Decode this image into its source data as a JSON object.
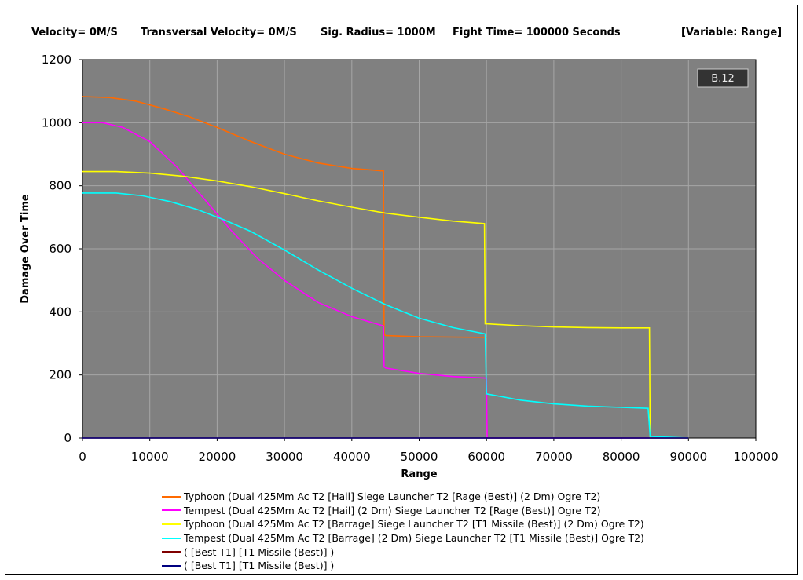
{
  "header": {
    "velocity": "Velocity= 0M/S",
    "transversal": "Transversal Velocity= 0M/S",
    "sig_radius": "Sig. Radius= 1000M",
    "fight_time": "Fight Time= 100000 Seconds",
    "variable": "[Variable: Range]"
  },
  "badge": "B.12",
  "colors": {
    "plot_background": "#808080",
    "grid": "#a6a6a6",
    "orange": "#ff6a00",
    "magenta": "#ff00ff",
    "yellow": "#ffff00",
    "cyan": "#00ffff",
    "darkred": "#800000",
    "navy": "#000080"
  },
  "chart_data": {
    "type": "line",
    "title": "",
    "xlabel": "Range",
    "ylabel": "Damage Over Time",
    "xlim": [
      0,
      100000
    ],
    "ylim": [
      0,
      1200
    ],
    "xticks": [
      "0",
      "10000",
      "20000",
      "30000",
      "40000",
      "50000",
      "60000",
      "70000",
      "80000",
      "90000",
      "100000"
    ],
    "yticks": [
      "0",
      "200",
      "400",
      "600",
      "800",
      "1000",
      "1200"
    ],
    "grid": true,
    "legend_position": "bottom",
    "series": [
      {
        "name": "Typhoon (Dual 425Mm Ac T2 [Hail] Siege Launcher T2 [Rage (Best)] (2 Dm) Ogre T2)",
        "color": "#ff6a00",
        "points": [
          [
            0,
            1083
          ],
          [
            4000,
            1080
          ],
          [
            8000,
            1068
          ],
          [
            12000,
            1045
          ],
          [
            16000,
            1018
          ],
          [
            20000,
            985
          ],
          [
            25000,
            940
          ],
          [
            30000,
            900
          ],
          [
            35000,
            872
          ],
          [
            40000,
            855
          ],
          [
            44700,
            847
          ],
          [
            44800,
            330
          ],
          [
            45000,
            325
          ],
          [
            50000,
            321
          ],
          [
            55000,
            320
          ],
          [
            60000,
            319
          ],
          [
            60000,
            319
          ]
        ]
      },
      {
        "name": "Tempest (Dual 425Mm Ac T2 [Hail] (2 Dm) Siege Launcher T2 [Rage (Best)] Ogre T2)",
        "color": "#ff00ff",
        "points": [
          [
            0,
            1000
          ],
          [
            3000,
            1000
          ],
          [
            6000,
            985
          ],
          [
            10000,
            940
          ],
          [
            14000,
            860
          ],
          [
            18000,
            760
          ],
          [
            22000,
            660
          ],
          [
            26000,
            570
          ],
          [
            30000,
            500
          ],
          [
            35000,
            430
          ],
          [
            40000,
            385
          ],
          [
            44700,
            355
          ],
          [
            44800,
            225
          ],
          [
            45000,
            222
          ],
          [
            50000,
            205
          ],
          [
            55000,
            195
          ],
          [
            60000,
            190
          ],
          [
            60100,
            0
          ],
          [
            62000,
            0
          ],
          [
            90000,
            0
          ]
        ]
      },
      {
        "name": "Typhoon (Dual 425Mm Ac T2 [Barrage] Siege Launcher T2 [T1 Missile (Best)] (2 Dm) Ogre T2)",
        "color": "#ffff00",
        "points": [
          [
            0,
            845
          ],
          [
            5000,
            845
          ],
          [
            10000,
            840
          ],
          [
            15000,
            830
          ],
          [
            20000,
            815
          ],
          [
            25000,
            797
          ],
          [
            30000,
            775
          ],
          [
            35000,
            752
          ],
          [
            40000,
            732
          ],
          [
            45000,
            713
          ],
          [
            50000,
            700
          ],
          [
            55000,
            688
          ],
          [
            59700,
            680
          ],
          [
            59800,
            362
          ],
          [
            60000,
            362
          ],
          [
            65000,
            356
          ],
          [
            70000,
            352
          ],
          [
            75000,
            350
          ],
          [
            80000,
            349
          ],
          [
            84200,
            349
          ],
          [
            84300,
            0
          ],
          [
            90000,
            0
          ]
        ]
      },
      {
        "name": "Tempest (Dual 425Mm Ac T2 [Barrage] (2 Dm) Siege Launcher T2 [T1 Missile (Best)] Ogre T2)",
        "color": "#00ffff",
        "points": [
          [
            0,
            777
          ],
          [
            5000,
            777
          ],
          [
            9000,
            768
          ],
          [
            13000,
            750
          ],
          [
            17000,
            725
          ],
          [
            21000,
            692
          ],
          [
            25000,
            655
          ],
          [
            30000,
            596
          ],
          [
            35000,
            533
          ],
          [
            40000,
            475
          ],
          [
            45000,
            423
          ],
          [
            50000,
            380
          ],
          [
            55000,
            350
          ],
          [
            59800,
            330
          ],
          [
            60000,
            140
          ],
          [
            65000,
            120
          ],
          [
            70000,
            108
          ],
          [
            75000,
            101
          ],
          [
            80000,
            97
          ],
          [
            84000,
            94
          ],
          [
            84300,
            5
          ],
          [
            90000,
            0
          ]
        ]
      },
      {
        "name": "( [Best T1] [T1 Missile (Best)] )",
        "color": "#800000",
        "points": [
          [
            0,
            0
          ],
          [
            90000,
            0
          ]
        ]
      },
      {
        "name": "( [Best T1] [T1 Missile (Best)] )",
        "color": "#000080",
        "points": [
          [
            0,
            0
          ],
          [
            90000,
            0
          ]
        ]
      }
    ]
  }
}
